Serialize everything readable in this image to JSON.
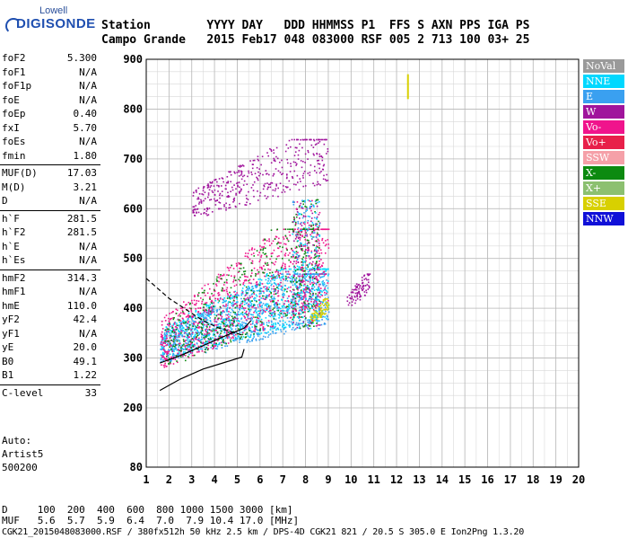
{
  "logo": {
    "line1": "Lowell",
    "line2": "DIGISONDE"
  },
  "header": {
    "row1": "Station        YYYY DAY   DDD HHMMSS P1  FFS S AXN PPS IGA PS",
    "row2": "Campo Grande   2015 Feb17 048 083000 RSF 005 2 713 100 03+ 25"
  },
  "params": [
    {
      "label": "foF2",
      "value": "5.300"
    },
    {
      "label": "foF1",
      "value": "N/A"
    },
    {
      "label": "foF1p",
      "value": "N/A"
    },
    {
      "label": "foE",
      "value": "N/A"
    },
    {
      "label": "foEp",
      "value": "0.40"
    },
    {
      "label": "fxI",
      "value": "5.70"
    },
    {
      "label": "foEs",
      "value": "N/A"
    },
    {
      "label": "fmin",
      "value": "1.80"
    },
    {
      "label": "MUF(D)",
      "value": "17.03"
    },
    {
      "label": "M(D)",
      "value": "3.21"
    },
    {
      "label": "D",
      "value": "N/A"
    },
    {
      "label": "h`F",
      "value": "281.5"
    },
    {
      "label": "h`F2",
      "value": "281.5"
    },
    {
      "label": "h`E",
      "value": "N/A"
    },
    {
      "label": "h`Es",
      "value": "N/A"
    },
    {
      "label": "hmF2",
      "value": "314.3"
    },
    {
      "label": "hmF1",
      "value": "N/A"
    },
    {
      "label": "hmE",
      "value": "110.0"
    },
    {
      "label": "yF2",
      "value": "42.4"
    },
    {
      "label": "yF1",
      "value": "N/A"
    },
    {
      "label": "yE",
      "value": "20.0"
    },
    {
      "label": "B0",
      "value": "49.1"
    },
    {
      "label": "B1",
      "value": "1.22"
    },
    {
      "label": "C-level",
      "value": "33"
    }
  ],
  "auto": {
    "line1": "Auto:",
    "line2": "Artist5",
    "line3": "500200"
  },
  "legend": [
    {
      "label": "NoVal",
      "color": "#9a9a9a"
    },
    {
      "label": "NNE",
      "color": "#00d8ff"
    },
    {
      "label": "E",
      "color": "#3aa0f0"
    },
    {
      "label": "W",
      "color": "#a0149c"
    },
    {
      "label": "Vo-",
      "color": "#f0148c"
    },
    {
      "label": "Vo+",
      "color": "#e8204a"
    },
    {
      "label": "SSW",
      "color": "#f5a0a8"
    },
    {
      "label": "X-",
      "color": "#0c8a10"
    },
    {
      "label": "X+",
      "color": "#8cc070"
    },
    {
      "label": "SSE",
      "color": "#d8d000"
    },
    {
      "label": "NNW",
      "color": "#1010d8"
    }
  ],
  "footer": {
    "row1": "D     100  200  400  600  800 1000 1500 3000 [km]",
    "row2": "MUF   5.6  5.7  5.9  6.4  7.0  7.9 10.4 17.0 [MHz]",
    "row3": "CGK21_2015048083000.RSF / 380fx512h 50 kHz 2.5 km / DPS-4D CGK21 821 / 20.5 S 305.0 E Ion2Png 1.3.20"
  },
  "chart_data": {
    "type": "scatter",
    "xlim": [
      1,
      20
    ],
    "ylim": [
      80,
      900
    ],
    "x_ticks": [
      1,
      2,
      3,
      4,
      5,
      6,
      7,
      8,
      9,
      10,
      11,
      12,
      13,
      14,
      15,
      16,
      17,
      18,
      19,
      20
    ],
    "y_ticks": [
      80,
      200,
      300,
      400,
      500,
      600,
      700,
      800,
      900
    ],
    "grid": true,
    "xlabel": "",
    "ylabel": "",
    "clusters": [
      {
        "color": "#00d8ff",
        "x_range": [
          1.6,
          9.0
        ],
        "y_range": [
          300,
          480
        ],
        "density": "high"
      },
      {
        "color": "#3aa0f0",
        "x_range": [
          1.6,
          9.0
        ],
        "y_range": [
          290,
          470
        ],
        "density": "high"
      },
      {
        "color": "#f0148c",
        "x_range": [
          1.6,
          9.0
        ],
        "y_range": [
          280,
          560
        ],
        "density": "high"
      },
      {
        "color": "#a0149c",
        "x_range": [
          3.0,
          9.0
        ],
        "y_range": [
          580,
          740
        ],
        "density": "medium"
      },
      {
        "color": "#0c8a10",
        "x_range": [
          1.8,
          8.6
        ],
        "y_range": [
          275,
          560
        ],
        "density": "medium"
      },
      {
        "color": "#d8d000",
        "x_range": [
          8.2,
          9.0
        ],
        "y_range": [
          370,
          420
        ],
        "density": "low"
      },
      {
        "color": "#a0149c",
        "x_range": [
          9.8,
          10.8
        ],
        "y_range": [
          400,
          470
        ],
        "density": "low"
      }
    ],
    "curves": [
      {
        "style": "solid",
        "points": [
          [
            1.6,
            290
          ],
          [
            2.5,
            305
          ],
          [
            3.5,
            325
          ],
          [
            4.5,
            345
          ],
          [
            5.3,
            360
          ],
          [
            5.6,
            375
          ]
        ]
      },
      {
        "style": "solid",
        "points": [
          [
            1.6,
            235
          ],
          [
            2.5,
            258
          ],
          [
            3.5,
            278
          ],
          [
            4.5,
            292
          ],
          [
            5.2,
            302
          ],
          [
            5.3,
            318
          ]
        ]
      },
      {
        "style": "dashed",
        "points": [
          [
            1.0,
            460
          ],
          [
            2.0,
            420
          ],
          [
            3.0,
            390
          ],
          [
            3.5,
            375
          ],
          [
            4.2,
            360
          ],
          [
            5.3,
            345
          ]
        ]
      }
    ],
    "marker": {
      "color": "#d8d000",
      "x": 12.5,
      "y_range": [
        820,
        870
      ]
    }
  }
}
